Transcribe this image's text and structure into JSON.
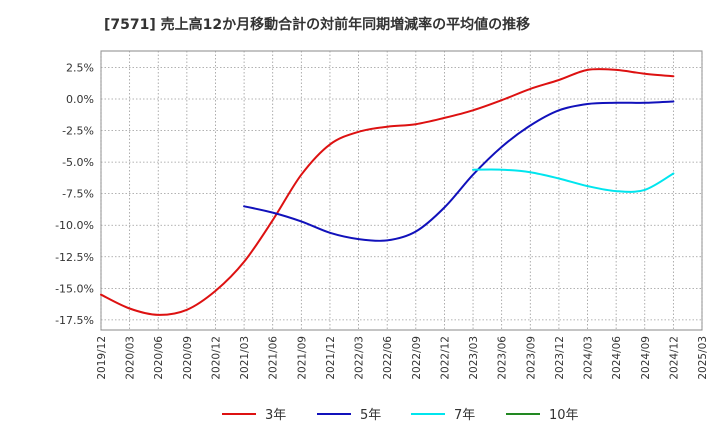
{
  "chart_data": {
    "type": "line",
    "title": "[7571]  売上高12か月移動合計の対前年同期増減率の平均値の推移",
    "xlabel": "",
    "ylabel": "",
    "x_ticks": [
      "2019/12",
      "2020/03",
      "2020/06",
      "2020/09",
      "2020/12",
      "2021/03",
      "2021/06",
      "2021/09",
      "2021/12",
      "2022/03",
      "2022/06",
      "2022/09",
      "2022/12",
      "2023/03",
      "2023/06",
      "2023/09",
      "2023/12",
      "2024/03",
      "2024/06",
      "2024/09",
      "2024/12",
      "2025/03"
    ],
    "y_ticks": [
      2.5,
      0.0,
      -2.5,
      -5.0,
      -7.5,
      -10.0,
      -12.5,
      -15.0,
      -17.5
    ],
    "y_tick_labels": [
      "2.5%",
      "0.0%",
      "-2.5%",
      "-5.0%",
      "-7.5%",
      "-10.0%",
      "-12.5%",
      "-15.0%",
      "-17.5%"
    ],
    "ylim": [
      -17.5,
      2.5
    ],
    "grid": true,
    "legend_position": "bottom",
    "series": [
      {
        "name": "3年",
        "color": "#dd1111",
        "points": [
          [
            "2019/12",
            -15.5
          ],
          [
            "2020/03",
            -16.6
          ],
          [
            "2020/06",
            -17.1
          ],
          [
            "2020/09",
            -16.7
          ],
          [
            "2020/12",
            -15.2
          ],
          [
            "2021/03",
            -12.9
          ],
          [
            "2021/06",
            -9.6
          ],
          [
            "2021/09",
            -6.0
          ],
          [
            "2021/12",
            -3.6
          ],
          [
            "2022/03",
            -2.6
          ],
          [
            "2022/06",
            -2.2
          ],
          [
            "2022/09",
            -2.0
          ],
          [
            "2022/12",
            -1.5
          ],
          [
            "2023/03",
            -0.9
          ],
          [
            "2023/06",
            -0.1
          ],
          [
            "2023/09",
            0.8
          ],
          [
            "2023/12",
            1.5
          ],
          [
            "2024/03",
            2.3
          ],
          [
            "2024/06",
            2.3
          ],
          [
            "2024/09",
            2.0
          ],
          [
            "2024/12",
            1.8
          ]
        ]
      },
      {
        "name": "5年",
        "color": "#1111bb",
        "points": [
          [
            "2021/03",
            -8.5
          ],
          [
            "2021/06",
            -9.0
          ],
          [
            "2021/09",
            -9.7
          ],
          [
            "2021/12",
            -10.6
          ],
          [
            "2022/03",
            -11.1
          ],
          [
            "2022/06",
            -11.2
          ],
          [
            "2022/09",
            -10.5
          ],
          [
            "2022/12",
            -8.6
          ],
          [
            "2023/03",
            -6.0
          ],
          [
            "2023/06",
            -3.8
          ],
          [
            "2023/09",
            -2.1
          ],
          [
            "2023/12",
            -0.9
          ],
          [
            "2024/03",
            -0.4
          ],
          [
            "2024/06",
            -0.3
          ],
          [
            "2024/09",
            -0.3
          ],
          [
            "2024/12",
            -0.2
          ]
        ]
      },
      {
        "name": "7年",
        "color": "#00e5ee",
        "points": [
          [
            "2023/03",
            -5.6
          ],
          [
            "2023/06",
            -5.6
          ],
          [
            "2023/09",
            -5.8
          ],
          [
            "2023/12",
            -6.3
          ],
          [
            "2024/03",
            -6.9
          ],
          [
            "2024/06",
            -7.3
          ],
          [
            "2024/09",
            -7.2
          ],
          [
            "2024/12",
            -5.9
          ]
        ]
      },
      {
        "name": "10年",
        "color": "#228822",
        "points": []
      }
    ]
  }
}
